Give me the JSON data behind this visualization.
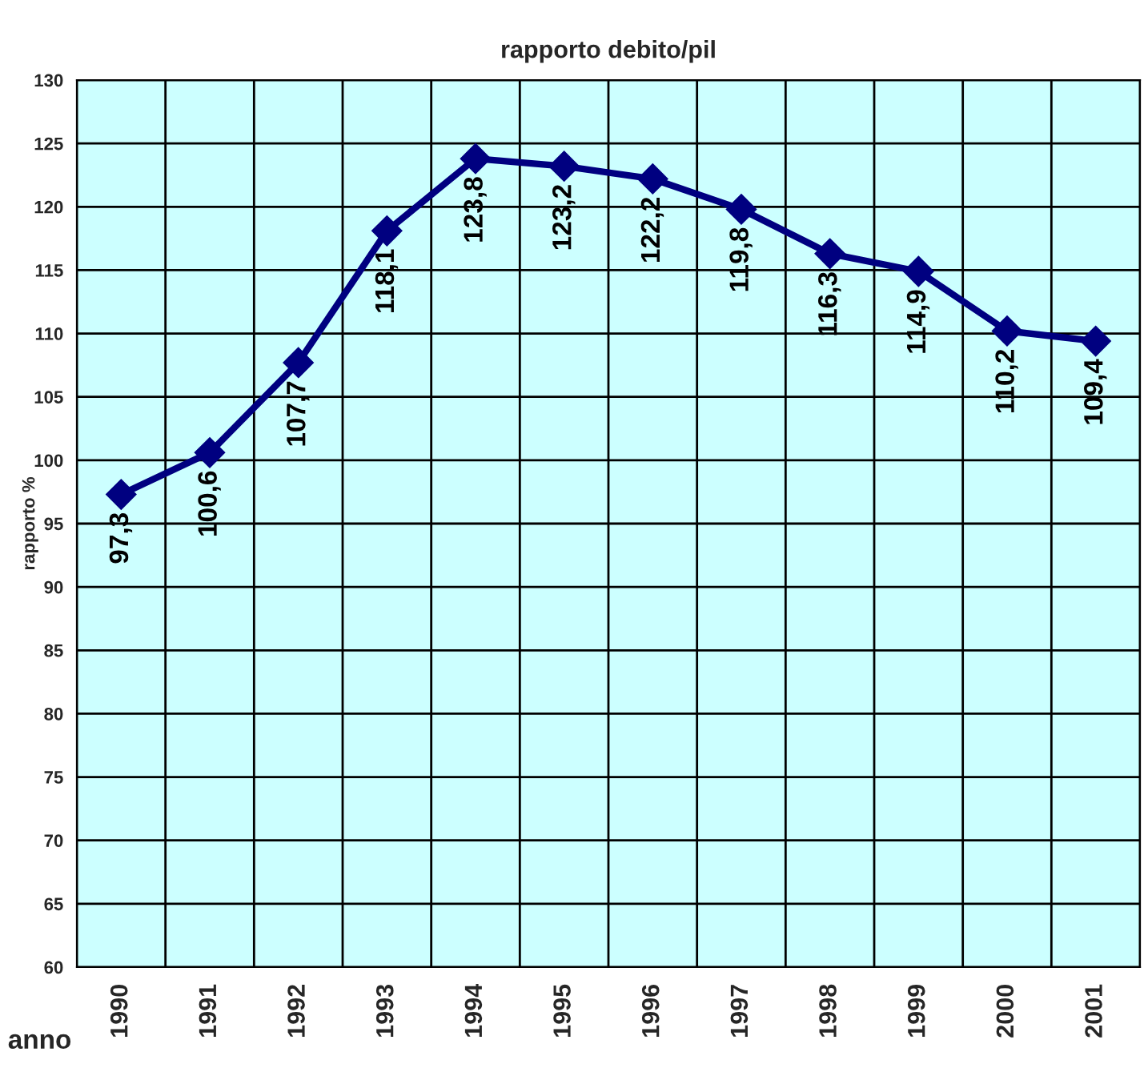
{
  "chart_data": {
    "type": "line",
    "title": "rapporto debito/pil",
    "xlabel": "anno",
    "ylabel": "rapporto %",
    "categories": [
      "1990",
      "1991",
      "1992",
      "1993",
      "1994",
      "1995",
      "1996",
      "1997",
      "1998",
      "1999",
      "2000",
      "2001"
    ],
    "series": [
      {
        "color": "#000080",
        "values": [
          97.3,
          100.6,
          107.7,
          118.1,
          123.8,
          123.2,
          122.2,
          119.8,
          116.3,
          114.9,
          110.2,
          109.4
        ],
        "value_labels": [
          "97,3",
          "100,6",
          "107,7",
          "118,1",
          "123,8",
          "123,2",
          "122,2",
          "119,8",
          "116,3",
          "114,9",
          "110,2",
          "109,4"
        ]
      }
    ],
    "ylim": [
      60,
      130
    ],
    "yticks": [
      60,
      65,
      70,
      75,
      80,
      85,
      90,
      95,
      100,
      105,
      110,
      115,
      120,
      125,
      130
    ],
    "grid": true,
    "marker": "diamond",
    "line_style": "solid",
    "legend": false
  }
}
